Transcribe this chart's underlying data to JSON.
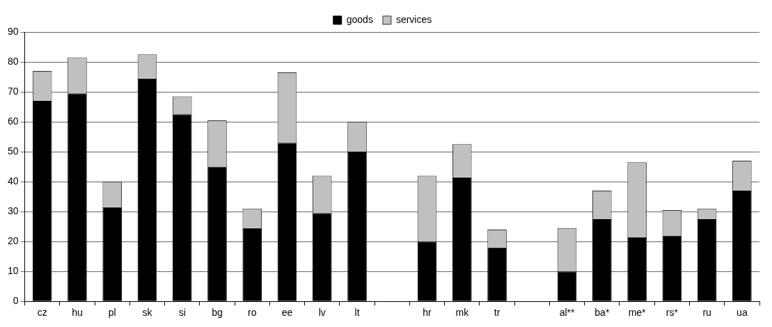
{
  "chart_data": {
    "type": "bar",
    "stacked": true,
    "categories": [
      "cz",
      "hu",
      "pl",
      "sk",
      "si",
      "bg",
      "ro",
      "ee",
      "lv",
      "lt",
      null,
      "hr",
      "mk",
      "tr",
      null,
      "al**",
      "ba*",
      "me*",
      "rs*",
      "ru",
      "ua"
    ],
    "series": [
      {
        "name": "goods",
        "color": "#000000",
        "values": [
          67,
          69.5,
          31.5,
          74.5,
          62.5,
          45,
          24.5,
          53,
          29.5,
          50,
          null,
          20,
          41.5,
          18,
          null,
          10,
          27.5,
          21.5,
          22,
          27.5,
          37
        ]
      },
      {
        "name": "services",
        "color": "#c0c0c0",
        "values": [
          10,
          12,
          8.5,
          8,
          6,
          15.5,
          6.5,
          23.5,
          12.5,
          10,
          null,
          22,
          11,
          6,
          null,
          14.5,
          9.5,
          25,
          8.5,
          3.5,
          10
        ]
      }
    ],
    "ylim": [
      0,
      90
    ],
    "yticks": [
      0,
      10,
      20,
      30,
      40,
      50,
      60,
      70,
      80,
      90
    ],
    "grid": "y",
    "legend": "top"
  }
}
